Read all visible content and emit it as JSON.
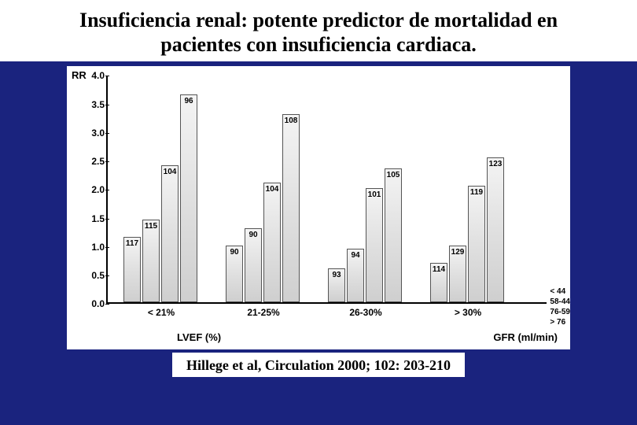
{
  "slide": {
    "title": "Insuficiencia renal: potente predictor de mortalidad en pacientes con insuficiencia cardiaca.",
    "background_color": "#1a237e",
    "title_color": "#000000",
    "title_fontsize": 26,
    "citation": "Hillege et al, Circulation 2000; 102: 203-210"
  },
  "chart": {
    "type": "grouped-3d-bar",
    "ylabel": "RR",
    "xlabel": "LVEF (%)",
    "zlabel": "GFR (ml/min)",
    "ylim": [
      0,
      4.0
    ],
    "ytick_step": 0.5,
    "yticks": [
      "0.0",
      "0.5",
      "1.0",
      "1.5",
      "2.0",
      "2.5",
      "3.0",
      "3.5",
      "4.0"
    ],
    "xcategories": [
      "< 21%",
      "21-25%",
      "26-30%",
      "> 30%"
    ],
    "zcategories": [
      "> 76",
      "76-59",
      "58-44",
      "< 44"
    ],
    "bar_face_color": "#e6e6e6",
    "bar_edge_color": "#555555",
    "background_color": "#ffffff",
    "data": {
      "rr_values": [
        [
          1.15,
          1.45,
          2.4,
          3.65
        ],
        [
          1.0,
          1.3,
          2.1,
          3.3
        ],
        [
          0.6,
          0.95,
          2.0,
          2.35
        ],
        [
          0.7,
          1.0,
          2.05,
          2.55
        ]
      ],
      "n_labels": [
        [
          "117",
          "115",
          "104",
          "96"
        ],
        [
          "90",
          "90",
          "104",
          "108"
        ],
        [
          "93",
          "94",
          "101",
          "105"
        ],
        [
          "114",
          "129",
          "119",
          "123"
        ]
      ]
    }
  }
}
